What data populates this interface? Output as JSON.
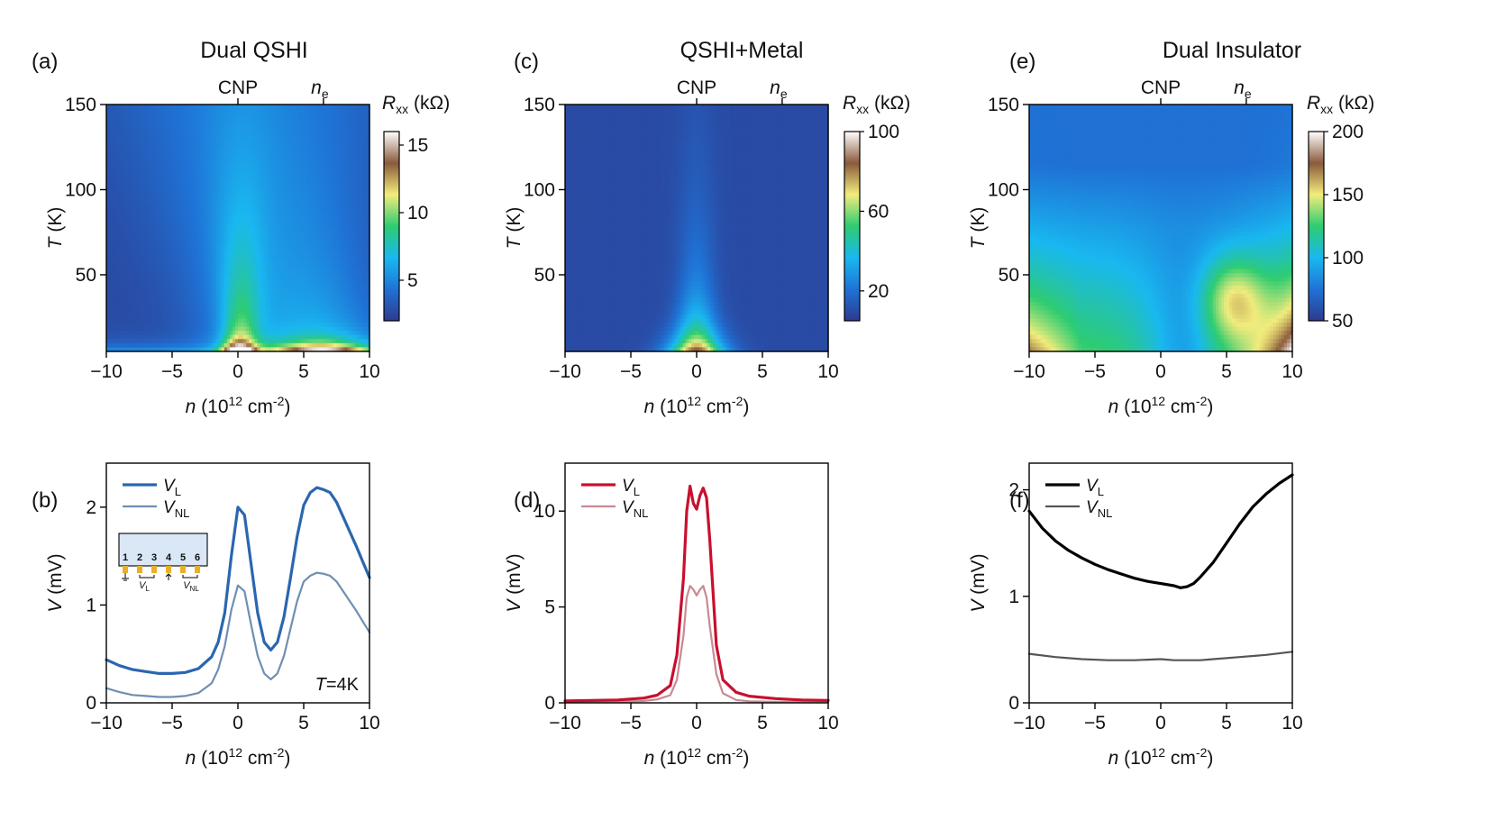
{
  "figure": {
    "panels": [
      {
        "label": "(a)",
        "title": "Dual QSHI",
        "title_color": "#2e6db4"
      },
      {
        "label": "(b)"
      },
      {
        "label": "(c)",
        "title": "QSHI+Metal",
        "title_color": "#c8102e"
      },
      {
        "label": "(d)"
      },
      {
        "label": "(e)",
        "title": "Dual Insulator",
        "title_color": "#111111"
      },
      {
        "label": "(f)"
      }
    ],
    "top_labels": {
      "cnp": "CNP",
      "ne_main": "n",
      "ne_sub": "e"
    },
    "heatmap_ylabel": {
      "main": "T",
      "unit": " (K)"
    },
    "line_ylabel": {
      "main": "V",
      "unit": " (mV)"
    },
    "xlabel": {
      "main": "n",
      "unit_pre": " (10",
      "sup1": "12",
      "unit_mid": " cm",
      "sup2": "-2",
      "unit_post": ")"
    },
    "colorbar_label": {
      "main": "R",
      "sub": "xx",
      "unit": " (kΩ)"
    },
    "legend": {
      "vl_main": "V",
      "vl_sub": "L",
      "vnl_main": "V",
      "vnl_sub": "NL"
    },
    "inset": {
      "contacts": [
        "1",
        "2",
        "3",
        "4",
        "5",
        "6"
      ],
      "vl_main": "V",
      "vl_sub": "L",
      "vnl_main": "V",
      "vnl_sub": "NL"
    },
    "annotation_b": {
      "main": "T",
      "rest": "=4K"
    }
  },
  "colormap": [
    "#2e3a8f",
    "#1f73d6",
    "#19b8f0",
    "#2ecc71",
    "#f2ec7c",
    "#8b5a3c",
    "#ffffff"
  ],
  "chart_data": [
    {
      "type": "heatmap",
      "panel": "(a)",
      "xlim": [
        -10,
        10
      ],
      "ylim": [
        5,
        150
      ],
      "xticks": [
        -10,
        -5,
        0,
        5,
        10
      ],
      "xtick_labels": [
        "−10",
        "−5",
        "0",
        "5",
        "10"
      ],
      "yticks": [
        50,
        100,
        150
      ],
      "ytick_labels": [
        "50",
        "100",
        "150"
      ],
      "top_ticks": {
        "CNP": 0,
        "n_e": 6.5
      },
      "colorbar": {
        "min": 2,
        "max": 16,
        "ticks": [
          5,
          10,
          15
        ],
        "tick_labels": [
          "5",
          "10",
          "15"
        ]
      }
    },
    {
      "type": "line",
      "panel": "(b)",
      "xlim": [
        -10,
        10
      ],
      "ylim": [
        0,
        2.45
      ],
      "xticks": [
        -10,
        -5,
        0,
        5,
        10
      ],
      "xtick_labels": [
        "−10",
        "−5",
        "0",
        "5",
        "10"
      ],
      "yticks": [
        0,
        1,
        2
      ],
      "ytick_labels": [
        "0",
        "1",
        "2"
      ],
      "series": [
        {
          "name": "V_L",
          "color": "#2b66b0",
          "width": 3.2,
          "x": [
            -10,
            -9,
            -8,
            -7,
            -6,
            -5,
            -4,
            -3,
            -2,
            -1.5,
            -1,
            -0.5,
            0,
            0.5,
            1,
            1.5,
            2,
            2.5,
            3,
            3.5,
            4,
            4.5,
            5,
            5.5,
            6,
            6.5,
            7,
            7.5,
            8,
            8.5,
            9,
            9.5,
            10
          ],
          "y": [
            0.44,
            0.38,
            0.34,
            0.32,
            0.3,
            0.3,
            0.31,
            0.35,
            0.47,
            0.62,
            0.92,
            1.5,
            2.0,
            1.92,
            1.42,
            0.92,
            0.62,
            0.54,
            0.62,
            0.88,
            1.28,
            1.7,
            2.02,
            2.15,
            2.2,
            2.18,
            2.15,
            2.05,
            1.9,
            1.75,
            1.6,
            1.44,
            1.28
          ]
        },
        {
          "name": "V_NL",
          "color": "#6f8fb2",
          "width": 2.2,
          "x": [
            -10,
            -9,
            -8,
            -7,
            -6,
            -5,
            -4,
            -3,
            -2,
            -1.5,
            -1,
            -0.5,
            0,
            0.5,
            1,
            1.5,
            2,
            2.5,
            3,
            3.5,
            4,
            4.5,
            5,
            5.5,
            6,
            6.5,
            7,
            7.5,
            8,
            8.5,
            9,
            9.5,
            10
          ],
          "y": [
            0.15,
            0.11,
            0.08,
            0.07,
            0.06,
            0.06,
            0.07,
            0.1,
            0.2,
            0.34,
            0.58,
            0.95,
            1.2,
            1.14,
            0.8,
            0.48,
            0.3,
            0.24,
            0.3,
            0.48,
            0.76,
            1.04,
            1.24,
            1.3,
            1.33,
            1.32,
            1.3,
            1.24,
            1.14,
            1.04,
            0.94,
            0.83,
            0.72
          ]
        }
      ]
    },
    {
      "type": "heatmap",
      "panel": "(c)",
      "xlim": [
        -10,
        10
      ],
      "ylim": [
        5,
        150
      ],
      "xticks": [
        -10,
        -5,
        0,
        5,
        10
      ],
      "xtick_labels": [
        "−10",
        "−5",
        "0",
        "5",
        "10"
      ],
      "yticks": [
        50,
        100,
        150
      ],
      "ytick_labels": [
        "50",
        "100",
        "150"
      ],
      "top_ticks": {
        "CNP": 0,
        "n_e": 6.5
      },
      "colorbar": {
        "min": 5,
        "max": 100,
        "ticks": [
          20,
          60,
          100
        ],
        "tick_labels": [
          "20",
          "60",
          "100"
        ]
      }
    },
    {
      "type": "line",
      "panel": "(d)",
      "xlim": [
        -10,
        10
      ],
      "ylim": [
        0,
        12.5
      ],
      "xticks": [
        -10,
        -5,
        0,
        5,
        10
      ],
      "xtick_labels": [
        "−10",
        "−5",
        "0",
        "5",
        "10"
      ],
      "yticks": [
        0,
        5,
        10
      ],
      "ytick_labels": [
        "0",
        "5",
        "10"
      ],
      "series": [
        {
          "name": "V_L",
          "color": "#c8102e",
          "width": 3.2,
          "x": [
            -10,
            -8,
            -6,
            -4,
            -3,
            -2,
            -1.5,
            -1,
            -0.75,
            -0.5,
            -0.25,
            0,
            0.25,
            0.5,
            0.75,
            1,
            1.5,
            2,
            3,
            4,
            6,
            8,
            10
          ],
          "y": [
            0.1,
            0.12,
            0.15,
            0.25,
            0.4,
            0.9,
            2.5,
            6.5,
            10.0,
            11.3,
            10.4,
            10.1,
            10.8,
            11.2,
            10.7,
            8.5,
            3.0,
            1.2,
            0.55,
            0.35,
            0.22,
            0.15,
            0.12
          ]
        },
        {
          "name": "V_NL",
          "color": "#c78a91",
          "width": 2.2,
          "x": [
            -10,
            -6,
            -4,
            -3,
            -2,
            -1.5,
            -1,
            -0.75,
            -0.5,
            -0.25,
            0,
            0.25,
            0.5,
            0.75,
            1,
            1.5,
            2,
            3,
            4,
            6,
            10
          ],
          "y": [
            0.05,
            0.06,
            0.1,
            0.18,
            0.4,
            1.2,
            3.5,
            5.5,
            6.1,
            5.9,
            5.6,
            5.9,
            6.1,
            5.5,
            4.0,
            1.5,
            0.5,
            0.15,
            0.08,
            0.05,
            0.04
          ]
        }
      ]
    },
    {
      "type": "heatmap",
      "panel": "(e)",
      "xlim": [
        -10,
        10
      ],
      "ylim": [
        5,
        150
      ],
      "xticks": [
        -10,
        -5,
        0,
        5,
        10
      ],
      "xtick_labels": [
        "−10",
        "−5",
        "0",
        "5",
        "10"
      ],
      "yticks": [
        50,
        100,
        150
      ],
      "ytick_labels": [
        "50",
        "100",
        "150"
      ],
      "top_ticks": {
        "CNP": 0,
        "n_e": 6.5
      },
      "colorbar": {
        "min": 50,
        "max": 200,
        "ticks": [
          50,
          100,
          150,
          200
        ],
        "tick_labels": [
          "50",
          "100",
          "150",
          "200"
        ]
      }
    },
    {
      "type": "line",
      "panel": "(f)",
      "xlim": [
        -10,
        10
      ],
      "ylim": [
        0,
        2.25
      ],
      "xticks": [
        -10,
        -5,
        0,
        5,
        10
      ],
      "xtick_labels": [
        "−10",
        "−5",
        "0",
        "5",
        "10"
      ],
      "yticks": [
        0,
        1,
        2
      ],
      "ytick_labels": [
        "0",
        "1",
        "2"
      ],
      "series": [
        {
          "name": "V_L",
          "color": "#000000",
          "width": 3.2,
          "x": [
            -10,
            -9,
            -8,
            -7,
            -6,
            -5,
            -4,
            -3,
            -2,
            -1,
            0,
            1,
            1.5,
            2,
            2.5,
            3,
            4,
            5,
            6,
            7,
            8,
            9,
            10
          ],
          "y": [
            1.8,
            1.64,
            1.52,
            1.43,
            1.36,
            1.3,
            1.25,
            1.21,
            1.17,
            1.14,
            1.12,
            1.1,
            1.08,
            1.09,
            1.12,
            1.18,
            1.32,
            1.5,
            1.68,
            1.84,
            1.96,
            2.06,
            2.14
          ]
        },
        {
          "name": "V_NL",
          "color": "#555555",
          "width": 2.2,
          "x": [
            -10,
            -8,
            -6,
            -4,
            -2,
            0,
            1,
            2,
            3,
            4,
            6,
            8,
            10
          ],
          "y": [
            0.46,
            0.43,
            0.41,
            0.4,
            0.4,
            0.41,
            0.4,
            0.4,
            0.4,
            0.41,
            0.43,
            0.45,
            0.48
          ]
        }
      ]
    }
  ]
}
